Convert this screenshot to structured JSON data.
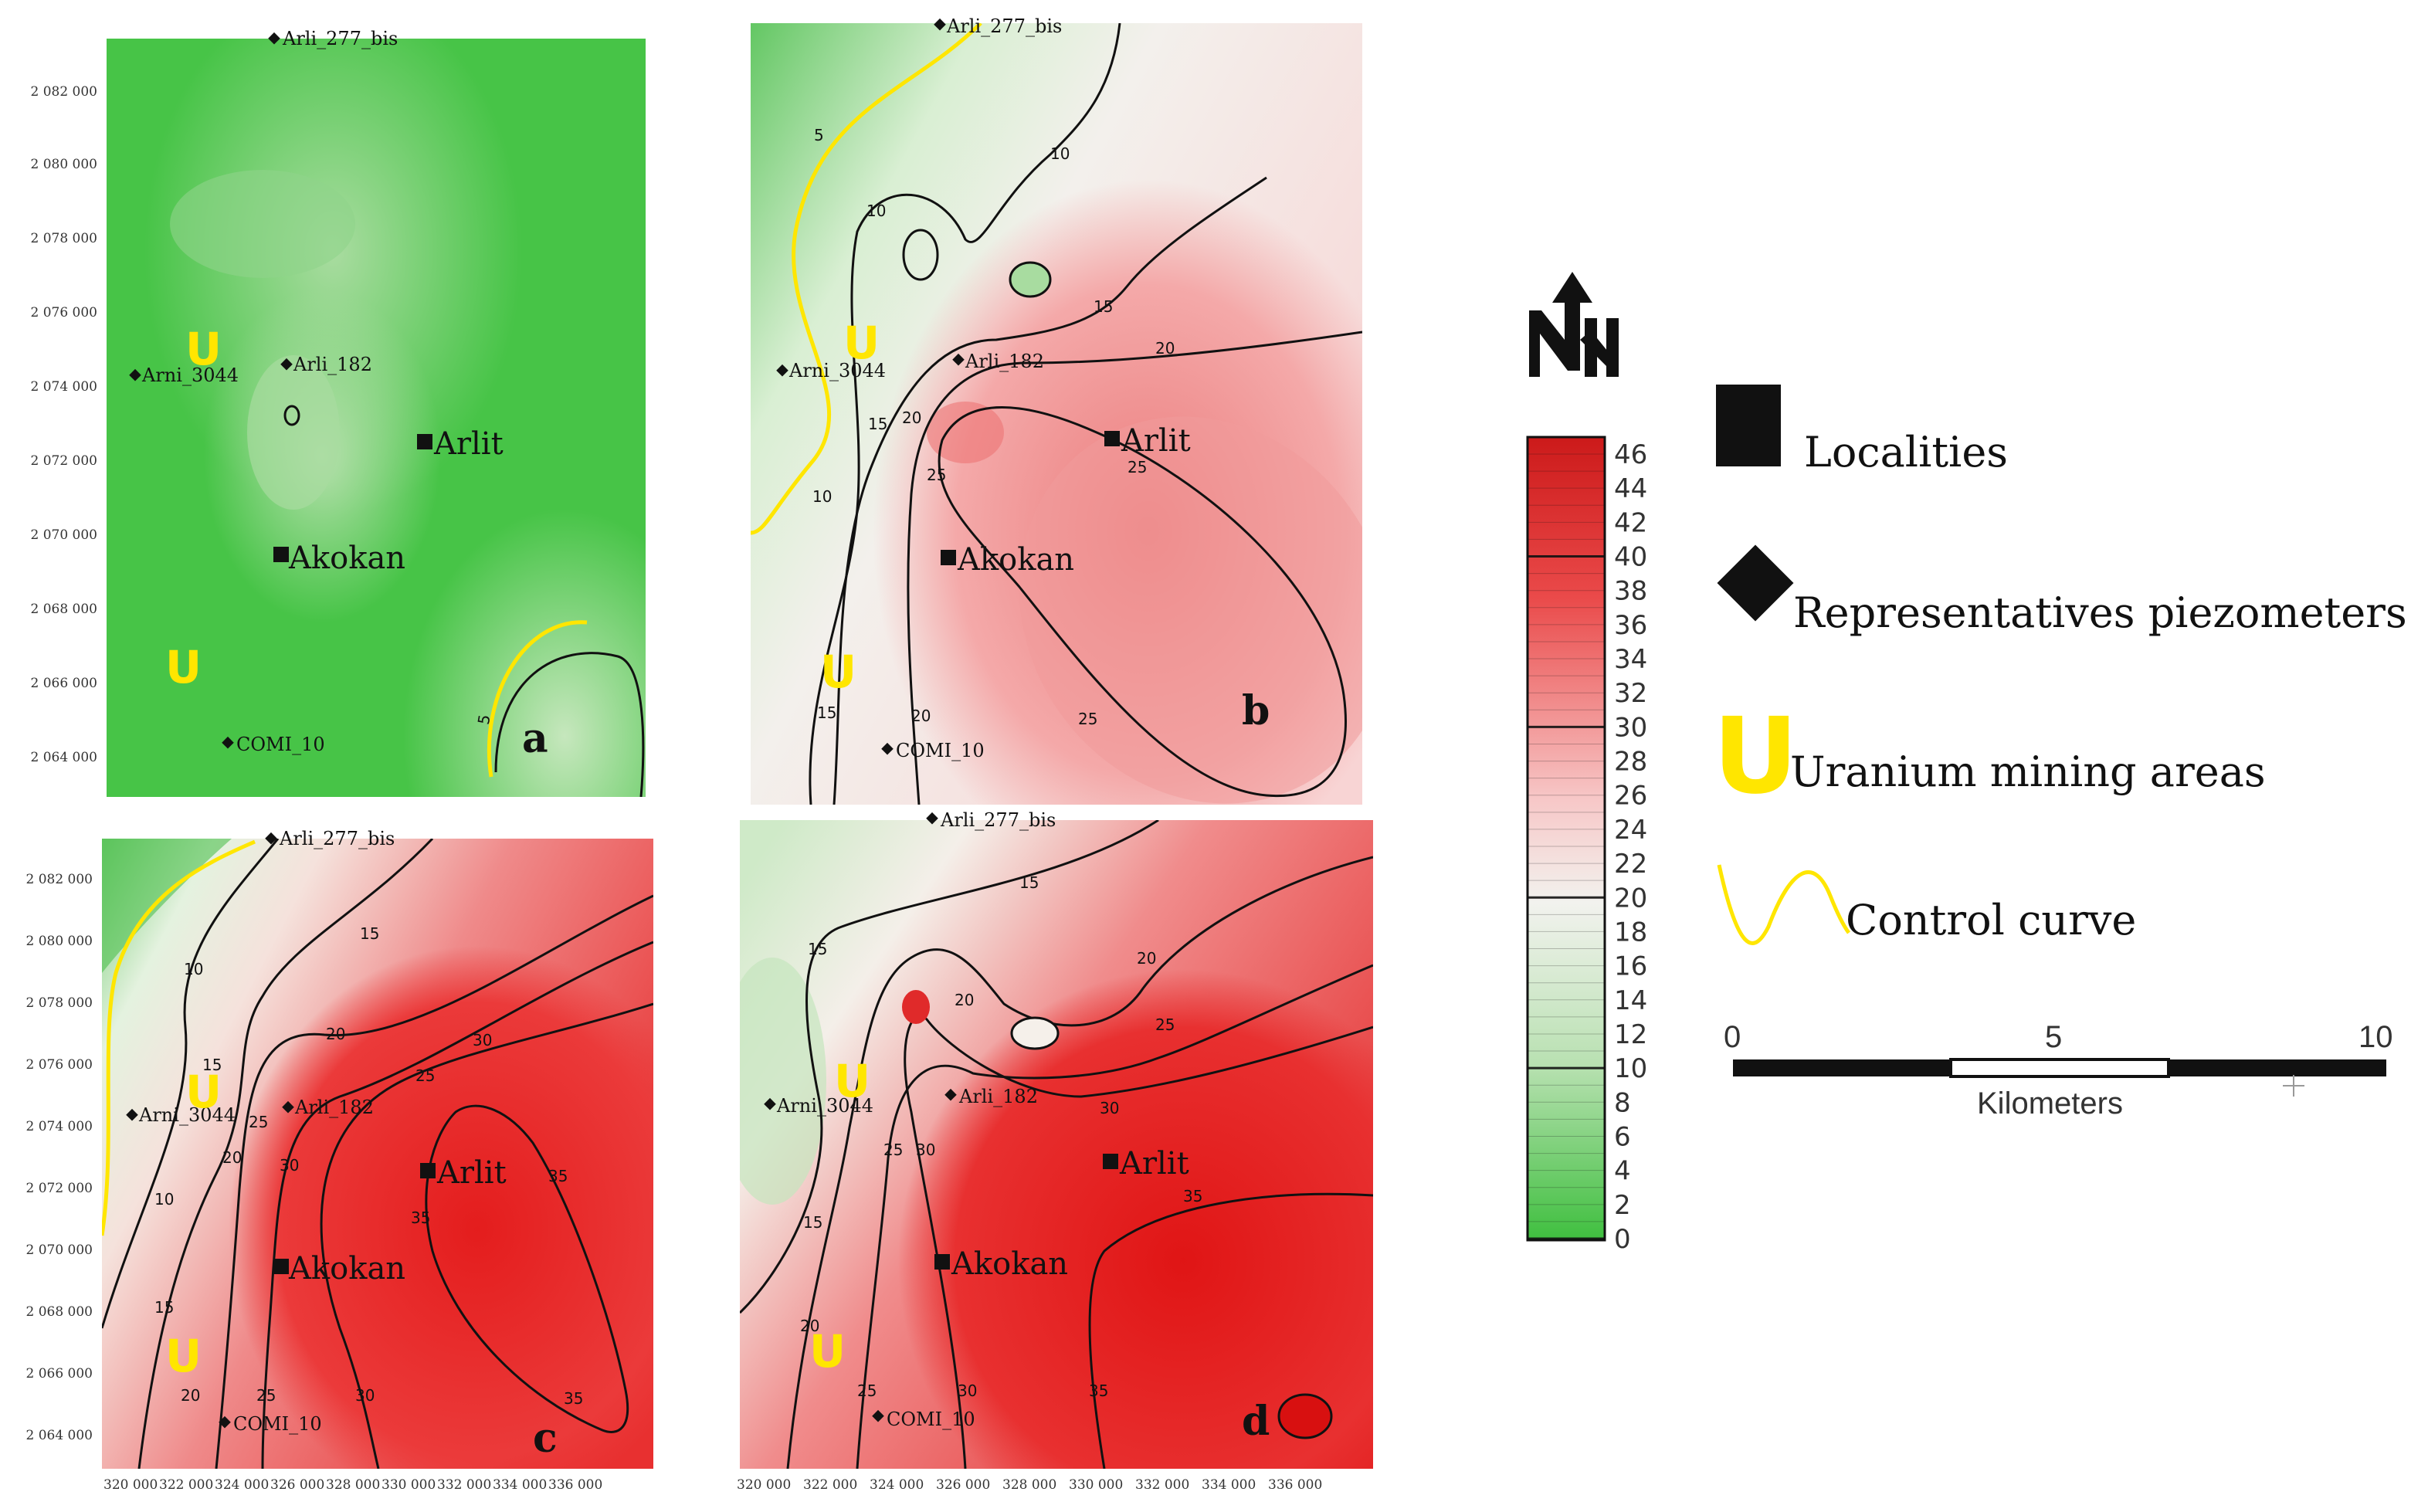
{
  "panels": [
    {
      "id": "a",
      "label": "a",
      "y_ticks": [
        "2 082 000",
        "2 080 000",
        "2 078 000",
        "2 076 000",
        "2 074 000",
        "2 072 000",
        "2 070 000",
        "2 068 000",
        "2 066 000",
        "2 064 000"
      ],
      "x_ticks": [],
      "contour_labels": [
        "5"
      ],
      "localities": [
        "Arlit",
        "Akokan"
      ],
      "piezometers": [
        "Arli_277_bis",
        "Arni_3044",
        "Arli_182",
        "COMI_10"
      ]
    },
    {
      "id": "b",
      "label": "b",
      "y_ticks": [],
      "x_ticks": [],
      "contour_labels": [
        "5",
        "10",
        "10",
        "10",
        "15",
        "15",
        "15",
        "20",
        "20",
        "20",
        "25",
        "25",
        "25"
      ],
      "localities": [
        "Arlit",
        "Akokan"
      ],
      "piezometers": [
        "Arli_277_bis",
        "Arni_3044",
        "Arli_182",
        "COMI_10"
      ]
    },
    {
      "id": "c",
      "label": "c",
      "y_ticks": [
        "2 082 000",
        "2 080 000",
        "2 078 000",
        "2 076 000",
        "2 074 000",
        "2 072 000",
        "2 070 000",
        "2 068 000",
        "2 066 000",
        "2 064 000"
      ],
      "x_ticks": [
        "320 000",
        "322 000",
        "324 000",
        "326 000",
        "328 000",
        "330 000",
        "332 000",
        "334 000",
        "336 000"
      ],
      "contour_labels": [
        "10",
        "10",
        "15",
        "15",
        "15",
        "20",
        "20",
        "20",
        "25",
        "25",
        "25",
        "30",
        "30",
        "30",
        "35",
        "35",
        "35"
      ],
      "localities": [
        "Arlit",
        "Akokan"
      ],
      "piezometers": [
        "Arli_277_bis",
        "Arni_3044",
        "Arli_182",
        "COMI_10"
      ]
    },
    {
      "id": "d",
      "label": "d",
      "y_ticks": [],
      "x_ticks": [
        "320 000",
        "322 000",
        "324 000",
        "326 000",
        "328 000",
        "330 000",
        "332 000",
        "334 000",
        "336 000"
      ],
      "contour_labels": [
        "15",
        "15",
        "15",
        "20",
        "20",
        "20",
        "25",
        "25",
        "25",
        "30",
        "30",
        "30",
        "35",
        "35"
      ],
      "localities": [
        "Arlit",
        "Akokan"
      ],
      "piezometers": [
        "Arli_277_bis",
        "Arni_3044",
        "Arli_182",
        "COMI_10"
      ]
    }
  ],
  "colorbar": {
    "ticks": [
      "46",
      "44",
      "42",
      "40",
      "38",
      "36",
      "34",
      "32",
      "30",
      "28",
      "26",
      "24",
      "22",
      "20",
      "18",
      "16",
      "14",
      "12",
      "10",
      "8",
      "6",
      "4",
      "2",
      "0"
    ],
    "min": 0,
    "max": 46,
    "low_color": "#3fbf3f",
    "mid_color": "#f2f2ee",
    "high_color": "#cc1a1a"
  },
  "legend": {
    "localities": "Localities",
    "piezometers": "Representatives piezometers",
    "uranium": "Uranium mining areas",
    "uranium_symbol": "U",
    "control_curve": "Control curve"
  },
  "scale_bar": {
    "labels": [
      "0",
      "5",
      "10"
    ],
    "unit": "Kilometers"
  },
  "north_arrow": "N"
}
